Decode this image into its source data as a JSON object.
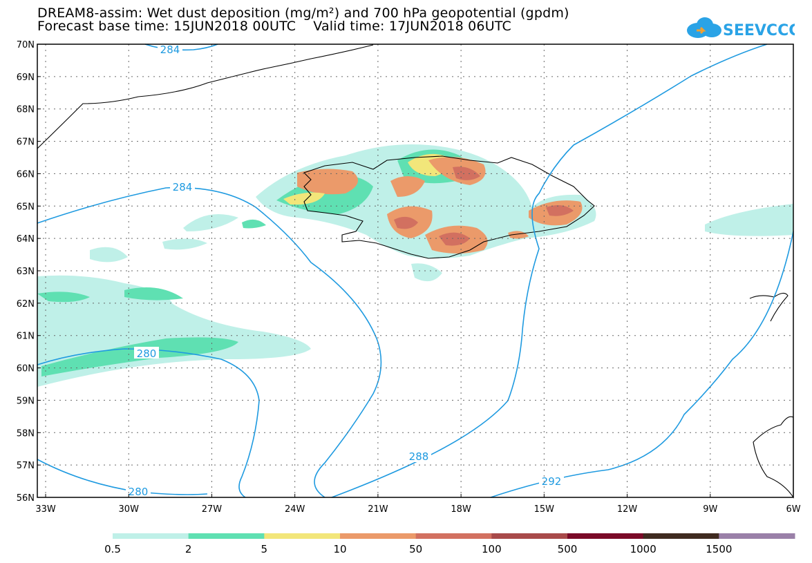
{
  "header": {
    "title_line1": "DREAM8-assim: Wet dust deposition (mg/m²) and 700 hPa geopotential (gpdm)",
    "title_line2": "Forecast base time: 15JUN2018 00UTC    Valid time: 17JUN2018 06UTC",
    "logo_text": "SEEVCCC"
  },
  "map": {
    "lat_labels": [
      "70N",
      "69N",
      "68N",
      "67N",
      "66N",
      "65N",
      "64N",
      "63N",
      "62N",
      "61N",
      "60N",
      "59N",
      "58N",
      "57N",
      "56N"
    ],
    "lon_labels": [
      "33W",
      "30W",
      "27W",
      "24W",
      "21W",
      "18W",
      "15W",
      "12W",
      "9W",
      "6W"
    ],
    "contour_labels": [
      "284",
      "284",
      "280",
      "280",
      "288",
      "292"
    ],
    "colors": {
      "contour": "#1e9ae0",
      "coast": "#000000"
    }
  },
  "legend": {
    "levels": [
      "0.5",
      "2",
      "5",
      "10",
      "50",
      "100",
      "500",
      "1000",
      "1500"
    ],
    "colors": [
      "#bff0e8",
      "#5fe0b2",
      "#f2e67a",
      "#eb9a6a",
      "#d27060",
      "#a84a4a",
      "#7a0a28",
      "#3f2a20",
      "#9a80a8",
      "#a8a8a8"
    ]
  }
}
